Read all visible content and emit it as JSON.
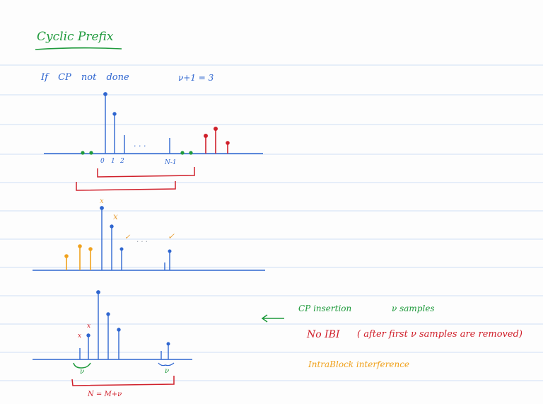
{
  "colors": {
    "ruling": "#cfe0f5",
    "blue": "#2f66d0",
    "red": "#d0202b",
    "green": "#1f9a3c",
    "orange": "#f0a21e",
    "ink_orange": "#e8a13a"
  },
  "title": "Cyclic Prefix",
  "line1": {
    "text": "If  CP  not  done",
    "eq": "ν+1 = 3"
  },
  "diagram1": {
    "tick_labels": [
      "0",
      "1",
      "2",
      "N-1"
    ],
    "dots": ". . ."
  },
  "diagram2": {
    "markers": [
      "x",
      "x",
      "✓",
      "✓"
    ],
    "dots": ". . ."
  },
  "diagram3": {
    "markers": [
      "x",
      "x"
    ],
    "brace_labels": [
      "ν",
      "ν"
    ],
    "length_label": "N = M+ν"
  },
  "notes": {
    "arrow": "⟵",
    "cp_insertion": "CP insertion",
    "nu_samples": "ν samples",
    "no_ibi": "No IBI",
    "after_first": "( after first ν samples are removed)",
    "intra_block": "IntraBlock interference"
  }
}
